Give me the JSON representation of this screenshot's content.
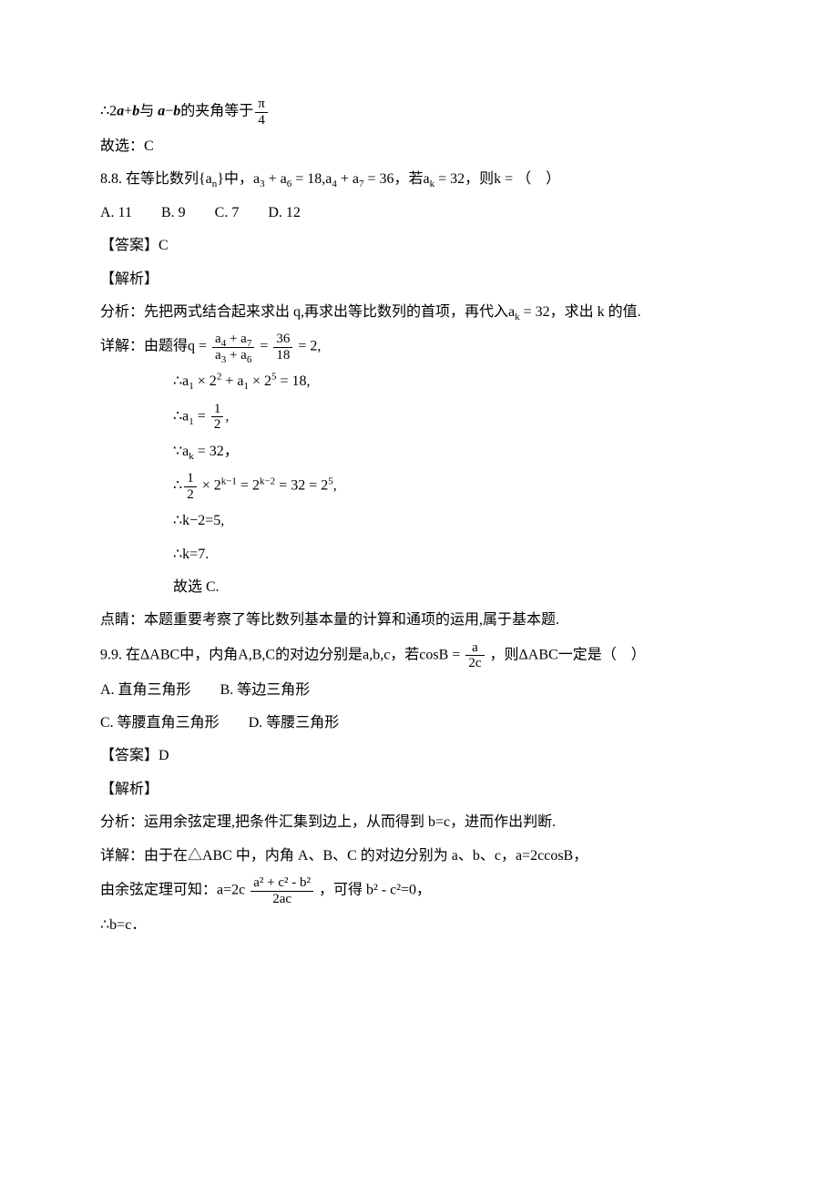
{
  "colors": {
    "text": "#000000",
    "background": "#ffffff"
  },
  "typography": {
    "body_fontsize_pt": 12,
    "font_family": "SimSun",
    "line_height": 1.9
  },
  "l00a": "∴2",
  "l00b": "a",
  "l00c": "+",
  "l00d": "b",
  "l00e": "与 ",
  "l00f": "a",
  "l00g": "−",
  "l00h": "b",
  "l00i": "的夹角等于",
  "pi": "π",
  "four": "4",
  "l01": "故选：C",
  "q8_a": "8.8. 在等比数列{a",
  "q8_b": "}中，a",
  "q8_c": " + a",
  "q8_d": " = 18,a",
  "q8_e": " + a",
  "q8_f": " = 36，若a",
  "q8_g": " = 32，则k = （    ）",
  "sub_n": "n",
  "sub3": "3",
  "sub4": "4",
  "sub5": "5",
  "sub6": "6",
  "sub7": "7",
  "sub_k": "k",
  "optA": "A. 11",
  "optB": "B. 9",
  "optC": "C. 7",
  "optD": "D. 12",
  "ansC": "【答案】C",
  "jiexi": "【解析】",
  "fx8a": "分析：先把两式结合起来求出 q,再求出等比数列的首项，再代入a",
  "fx8b": " = 32，求出 k 的值.",
  "xj8a": "详解：由题得q =",
  "num1a": "a",
  "num1b": " + a",
  "den1a": "a",
  "den1b": " + a",
  "eq36": "36",
  "eq18": "18",
  "eq2": " = 2,",
  "s1a": "∴a",
  "s1b": " × 2",
  "s1c": " + a",
  "s1d": " × 2",
  "s1e": " = 18,",
  "sup2": "2",
  "sup5": "5",
  "sub1": "1",
  "s2a": "∴a",
  "s2b": " = ",
  "one": "1",
  "two": "2",
  "comma": ",",
  "s3a": "∵a",
  "s3b": " = 32，",
  "s4a": "∴",
  "s4b": " × 2",
  "s4c": " = 2",
  "s4d": " = 32 = 2",
  "s4e": ",",
  "km1": "k−1",
  "km2": "k−2",
  "s5": "∴k−2=5,",
  "s6": "∴k=7.",
  "s7": "故选 C.",
  "dj8": "点睛：本题重要考察了等比数列基本量的计算和通项的运用,属于基本题.",
  "q9a": "9.9. 在ΔABC中，内角A,B,C的对边分别是a,b,c，若cosB =",
  "q9b": "，则ΔABC一定是（    ）",
  "a_lbl": "a",
  "tc": "2c",
  "o9a": "A. 直角三角形",
  "o9b": "B. 等边三角形",
  "o9c": "C. 等腰直角三角形",
  "o9d": "D. 等腰三角形",
  "ansD": "【答案】D",
  "fx9": "分析：运用余弦定理,把条件汇集到边上，从而得到 b=c，进而作出判断.",
  "xj9": "详解：由于在△ABC 中，内角 A、B、C 的对边分别为 a、b、c，a=2ccosB，",
  "yx9a": "由余弦定理可知：a=2c",
  "yx9b": "，可得 b² - c²=0，",
  "nexp": "a² + c² - b²",
  "dexp": "2ac",
  "bc": "∴b=c．"
}
